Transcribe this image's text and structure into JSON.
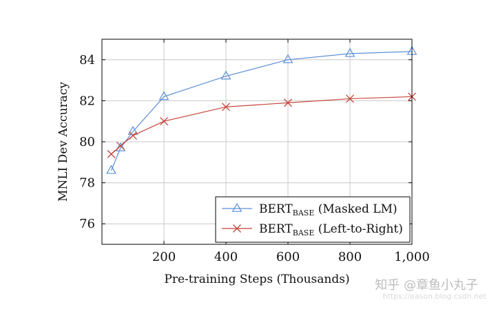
{
  "chart_data": {
    "type": "line",
    "xlabel": "Pre-training Steps (Thousands)",
    "ylabel": "MNLI Dev Accuracy",
    "xlim": [
      0,
      1000
    ],
    "ylim": [
      75,
      85
    ],
    "xticks": [
      200,
      400,
      600,
      800,
      1000
    ],
    "xtick_labels": [
      "200",
      "400",
      "600",
      "800",
      "1,000"
    ],
    "yticks": [
      76,
      78,
      80,
      82,
      84
    ],
    "ytick_labels": [
      "76",
      "78",
      "80",
      "82",
      "84"
    ],
    "grid": true,
    "legend_position": "bottom-right",
    "series": [
      {
        "name_main": "BERT",
        "name_sub": "BASE",
        "name_suffix": " (Masked LM)",
        "color": "#5b8fd6",
        "marker": "triangle",
        "x": [
          30,
          60,
          100,
          200,
          400,
          600,
          800,
          1000
        ],
        "y": [
          78.6,
          79.7,
          80.5,
          82.2,
          83.2,
          84.0,
          84.3,
          84.4
        ]
      },
      {
        "name_main": "BERT",
        "name_sub": "BASE",
        "name_suffix": " (Left-to-Right)",
        "color": "#c7453a",
        "marker": "x",
        "x": [
          30,
          60,
          100,
          200,
          400,
          600,
          800,
          1000
        ],
        "y": [
          79.4,
          79.8,
          80.3,
          81.0,
          81.7,
          81.9,
          82.1,
          82.2
        ]
      }
    ]
  },
  "watermark": {
    "main": "知乎 @章鱼小丸子",
    "url": "https://eason.blog.csdn.net"
  }
}
